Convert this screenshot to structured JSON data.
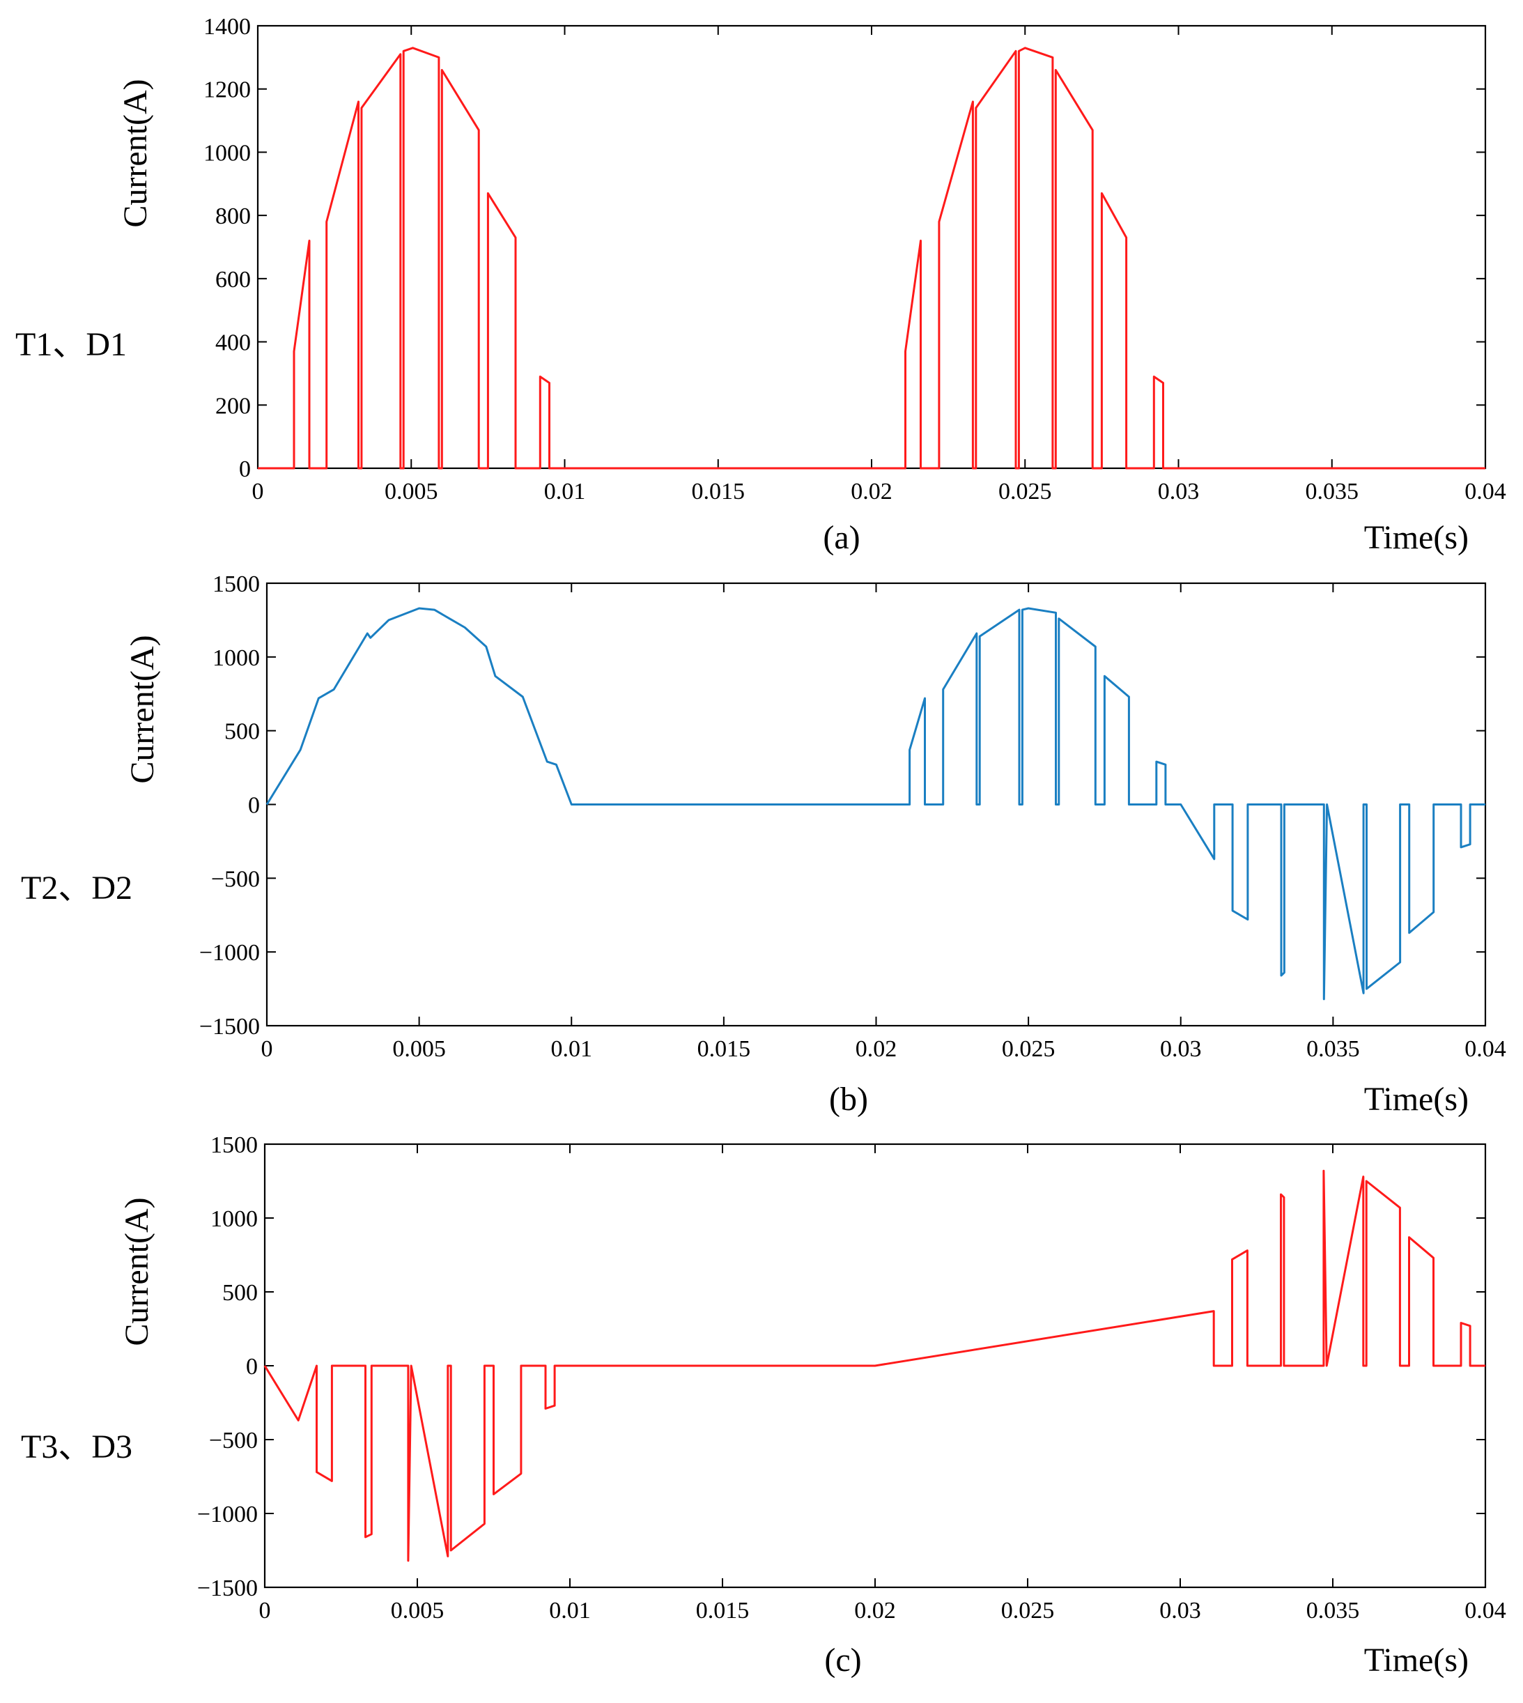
{
  "chart_data": [
    {
      "type": "line",
      "panel_label": "T1、D1",
      "caption": "(a)",
      "xlabel": "Time(s)",
      "ylabel": "Current(A)",
      "xlim": [
        0,
        0.04
      ],
      "ylim": [
        0,
        1400
      ],
      "xticks": [
        0,
        0.005,
        0.01,
        0.015,
        0.02,
        0.025,
        0.03,
        0.035,
        0.04
      ],
      "xtick_labels": [
        "0",
        "0.005",
        "0.01",
        "0.015",
        "0.02",
        "0.025",
        "0.03",
        "0.035",
        "0.04"
      ],
      "yticks": [
        0,
        200,
        400,
        600,
        800,
        1000,
        1200,
        1400
      ],
      "ytick_labels": [
        "0",
        "200",
        "400",
        "600",
        "800",
        "1000",
        "1200",
        "1400"
      ],
      "color": "#ff1a1a",
      "series": [
        {
          "name": "T1、D1 current",
          "x": [
            0,
            0.00118,
            0.00118,
            0.00168,
            0.00168,
            0.00224,
            0.00224,
            0.00328,
            0.00328,
            0.00338,
            0.00338,
            0.00465,
            0.00465,
            0.00475,
            0.00475,
            0.00505,
            0.0059,
            0.0059,
            0.006,
            0.006,
            0.0072,
            0.0072,
            0.0075,
            0.0075,
            0.0084,
            0.0084,
            0.0092,
            0.0092,
            0.0095,
            0.0095,
            0.0211,
            0.0211,
            0.0216,
            0.0216,
            0.0222,
            0.0222,
            0.0233,
            0.0233,
            0.0234,
            0.0234,
            0.0247,
            0.0247,
            0.0248,
            0.0248,
            0.025,
            0.0259,
            0.0259,
            0.026,
            0.026,
            0.0272,
            0.0272,
            0.0275,
            0.0275,
            0.0283,
            0.0283,
            0.0292,
            0.0292,
            0.0295,
            0.0295,
            0.04
          ],
          "y": [
            0,
            0,
            370,
            720,
            0,
            0,
            780,
            1160,
            0,
            0,
            1140,
            1310,
            0,
            0,
            1320,
            1330,
            1300,
            0,
            0,
            1260,
            1070,
            0,
            0,
            870,
            730,
            0,
            0,
            290,
            270,
            0,
            0,
            370,
            720,
            0,
            0,
            780,
            1160,
            0,
            0,
            1140,
            1320,
            0,
            0,
            1320,
            1330,
            1300,
            0,
            0,
            1260,
            1070,
            0,
            0,
            870,
            730,
            0,
            0,
            290,
            270,
            0,
            0
          ]
        }
      ]
    },
    {
      "type": "line",
      "panel_label": "T2、D2",
      "caption": "(b)",
      "xlabel": "Time(s)",
      "ylabel": "Current(A)",
      "xlim": [
        0,
        0.04
      ],
      "ylim": [
        -1500,
        1500
      ],
      "xticks": [
        0,
        0.005,
        0.01,
        0.015,
        0.02,
        0.025,
        0.03,
        0.035,
        0.04
      ],
      "xtick_labels": [
        "0",
        "0.005",
        "0.01",
        "0.015",
        "0.02",
        "0.025",
        "0.03",
        "0.035",
        "0.04"
      ],
      "yticks": [
        -1500,
        -1000,
        -500,
        0,
        500,
        1000,
        1500
      ],
      "ytick_labels": [
        "−1500",
        "−1000",
        "−500",
        "0",
        "500",
        "1000",
        "1500"
      ],
      "color": "#1a7fc2",
      "series": [
        {
          "name": "T2、D2 current",
          "x": [
            0,
            0.0011,
            0.0017,
            0.0022,
            0.0033,
            0.0034,
            0.004,
            0.005,
            0.0055,
            0.006,
            0.0065,
            0.0072,
            0.0075,
            0.0084,
            0.0092,
            0.0095,
            0.01,
            0.0211,
            0.0211,
            0.0216,
            0.0216,
            0.0222,
            0.0222,
            0.0233,
            0.0233,
            0.0234,
            0.0234,
            0.0247,
            0.0247,
            0.0248,
            0.0248,
            0.025,
            0.0259,
            0.0259,
            0.026,
            0.026,
            0.0272,
            0.0272,
            0.0275,
            0.0275,
            0.0283,
            0.0283,
            0.0292,
            0.0292,
            0.0295,
            0.0295,
            0.03,
            0.0311,
            0.0311,
            0.0317,
            0.0317,
            0.0322,
            0.0322,
            0.0333,
            0.0333,
            0.0334,
            0.0334,
            0.0347,
            0.0347,
            0.0348,
            0.0348,
            0.036,
            0.036,
            0.0361,
            0.0361,
            0.0372,
            0.0372,
            0.0375,
            0.0375,
            0.0383,
            0.0383,
            0.0392,
            0.0392,
            0.0395,
            0.0395,
            0.04
          ],
          "y": [
            0,
            370,
            720,
            780,
            1160,
            1130,
            1250,
            1330,
            1320,
            1260,
            1200,
            1070,
            870,
            730,
            290,
            270,
            0,
            0,
            370,
            720,
            0,
            0,
            780,
            1160,
            0,
            0,
            1140,
            1320,
            0,
            0,
            1320,
            1330,
            1300,
            0,
            0,
            1260,
            1070,
            0,
            0,
            870,
            730,
            0,
            0,
            290,
            270,
            0,
            0,
            -370,
            0,
            0,
            -720,
            -780,
            0,
            0,
            -1160,
            -1140,
            0,
            0,
            -1320,
            0,
            0,
            -1280,
            0,
            0,
            -1250,
            -1070,
            0,
            0,
            -870,
            -730,
            0,
            0,
            -290,
            -270,
            0,
            0
          ]
        }
      ]
    },
    {
      "type": "line",
      "panel_label": "T3、D3",
      "caption": "(c)",
      "xlabel": "Time(s)",
      "ylabel": "Current(A)",
      "xlim": [
        0,
        0.04
      ],
      "ylim": [
        -1500,
        1500
      ],
      "xticks": [
        0,
        0.005,
        0.01,
        0.015,
        0.02,
        0.025,
        0.03,
        0.035,
        0.04
      ],
      "xtick_labels": [
        "0",
        "0.005",
        "0.01",
        "0.015",
        "0.02",
        "0.025",
        "0.03",
        "0.035",
        "0.04"
      ],
      "yticks": [
        -1500,
        -1000,
        -500,
        0,
        500,
        1000,
        1500
      ],
      "ytick_labels": [
        "−1500",
        "−1000",
        "−500",
        "0",
        "500",
        "1000",
        "1500"
      ],
      "color": "#ff1a1a",
      "series": [
        {
          "name": "T3、D3 current",
          "x": [
            0,
            0.0011,
            0.0017,
            0.0017,
            0.0022,
            0.0022,
            0.0033,
            0.0033,
            0.0035,
            0.0035,
            0.0047,
            0.0047,
            0.0048,
            0.0048,
            0.006,
            0.006,
            0.0061,
            0.0061,
            0.0072,
            0.0072,
            0.0075,
            0.0075,
            0.0084,
            0.0084,
            0.0092,
            0.0092,
            0.0095,
            0.0095,
            0.01,
            0.02,
            0.0311,
            0.0311,
            0.0317,
            0.0317,
            0.0322,
            0.0322,
            0.0333,
            0.0333,
            0.0334,
            0.0334,
            0.0347,
            0.0347,
            0.0348,
            0.0348,
            0.036,
            0.036,
            0.0361,
            0.0361,
            0.0372,
            0.0372,
            0.0375,
            0.0375,
            0.0383,
            0.0383,
            0.0392,
            0.0392,
            0.0395,
            0.0395,
            0.04
          ],
          "y": [
            0,
            -370,
            0,
            -720,
            -780,
            0,
            0,
            -1160,
            -1140,
            0,
            0,
            -1320,
            0,
            0,
            -1290,
            0,
            0,
            -1250,
            -1070,
            0,
            0,
            -870,
            -730,
            0,
            0,
            -290,
            -270,
            0,
            0,
            0,
            370,
            0,
            0,
            720,
            780,
            0,
            0,
            1160,
            1140,
            0,
            0,
            1320,
            0,
            0,
            1280,
            0,
            0,
            1250,
            1070,
            0,
            0,
            870,
            730,
            0,
            0,
            290,
            270,
            0,
            0
          ]
        }
      ]
    }
  ]
}
